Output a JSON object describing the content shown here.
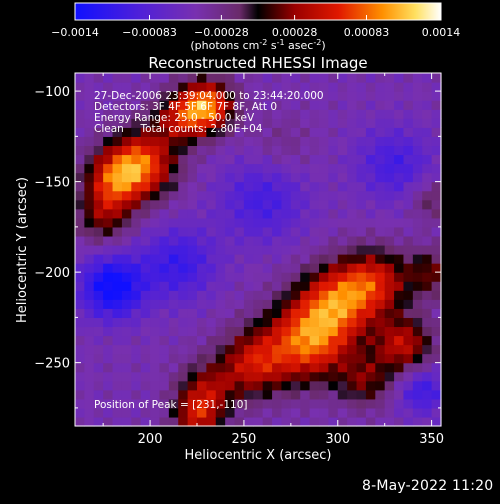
{
  "chart_data": {
    "type": "heatmap",
    "title": "Reconstructed RHESSI Image",
    "xlabel": "Heliocentric X (arcsec)",
    "ylabel": "Heliocentric Y (arcsec)",
    "xlim": [
      160,
      355
    ],
    "ylim": [
      -285,
      -90
    ],
    "xticks": [
      200,
      250,
      300,
      350
    ],
    "yticks": [
      -100,
      -150,
      -200,
      -250
    ],
    "colorbar": {
      "range": [
        -0.0014,
        0.0014
      ],
      "ticks": [
        "-0.0014",
        "-0.00083",
        "-0.00028",
        "0.00028",
        "0.00083",
        "0.0014"
      ],
      "tick_values": [
        -0.0014,
        -0.00083,
        -0.00028,
        0.00028,
        0.00083,
        0.0014
      ],
      "label_prefix": "(photons cm",
      "label_sup1": "-2",
      "label_mid": " s",
      "label_sup2": "-1",
      "label_mid2": " asec",
      "label_sup3": "-2",
      "label_suffix": ")"
    },
    "annotations": {
      "line1": "27-Dec-2006 23:39:04.000 to 23:44:20.000",
      "line2": "Detectors: 3F 4F 5F 6F 7F 8F, Att 0",
      "line3": "Energy Range: 25.0 - 50.0 keV",
      "line4": "Clean     Total counts: 2.80E+04",
      "peak": "Position of Peak = [231,-110]"
    },
    "sources": [
      {
        "x": 195,
        "y": -140,
        "amplitude": 0.00125,
        "sigma": 13
      },
      {
        "x": 180,
        "y": -150,
        "amplitude": 0.0009,
        "sigma": 11
      },
      {
        "x": 230,
        "y": -108,
        "amplitude": 0.0014,
        "sigma": 10
      },
      {
        "x": 215,
        "y": -115,
        "amplitude": 0.0007,
        "sigma": 10
      },
      {
        "x": 285,
        "y": -237,
        "amplitude": 0.0013,
        "sigma": 16
      },
      {
        "x": 300,
        "y": -215,
        "amplitude": 0.001,
        "sigma": 14
      },
      {
        "x": 320,
        "y": -205,
        "amplitude": 0.0009,
        "sigma": 13
      },
      {
        "x": 255,
        "y": -250,
        "amplitude": 0.0009,
        "sigma": 13
      },
      {
        "x": 335,
        "y": -240,
        "amplitude": 0.0009,
        "sigma": 11
      },
      {
        "x": 315,
        "y": -260,
        "amplitude": 0.0006,
        "sigma": 10
      },
      {
        "x": 230,
        "y": -265,
        "amplitude": 0.0007,
        "sigma": 11
      },
      {
        "x": 225,
        "y": -280,
        "amplitude": 0.0008,
        "sigma": 9
      },
      {
        "x": 350,
        "y": -200,
        "amplitude": 0.0006,
        "sigma": 9
      },
      {
        "x": 350,
        "y": -160,
        "amplitude": 0.0004,
        "sigma": 8
      },
      {
        "x": 175,
        "y": -170,
        "amplitude": 0.0006,
        "sigma": 10
      },
      {
        "x": 270,
        "y": -130,
        "amplitude": 0.0002,
        "sigma": 12
      },
      {
        "x": 180,
        "y": -208,
        "amplitude": -0.001,
        "sigma": 12
      },
      {
        "x": 215,
        "y": -195,
        "amplitude": -0.0006,
        "sigma": 14
      },
      {
        "x": 260,
        "y": -160,
        "amplitude": -0.0005,
        "sigma": 16
      },
      {
        "x": 330,
        "y": -140,
        "amplitude": -0.0005,
        "sigma": 14
      },
      {
        "x": 345,
        "y": -265,
        "amplitude": -0.0006,
        "sigma": 9
      }
    ]
  },
  "footer": {
    "timestamp": "8-May-2022 11:20"
  }
}
